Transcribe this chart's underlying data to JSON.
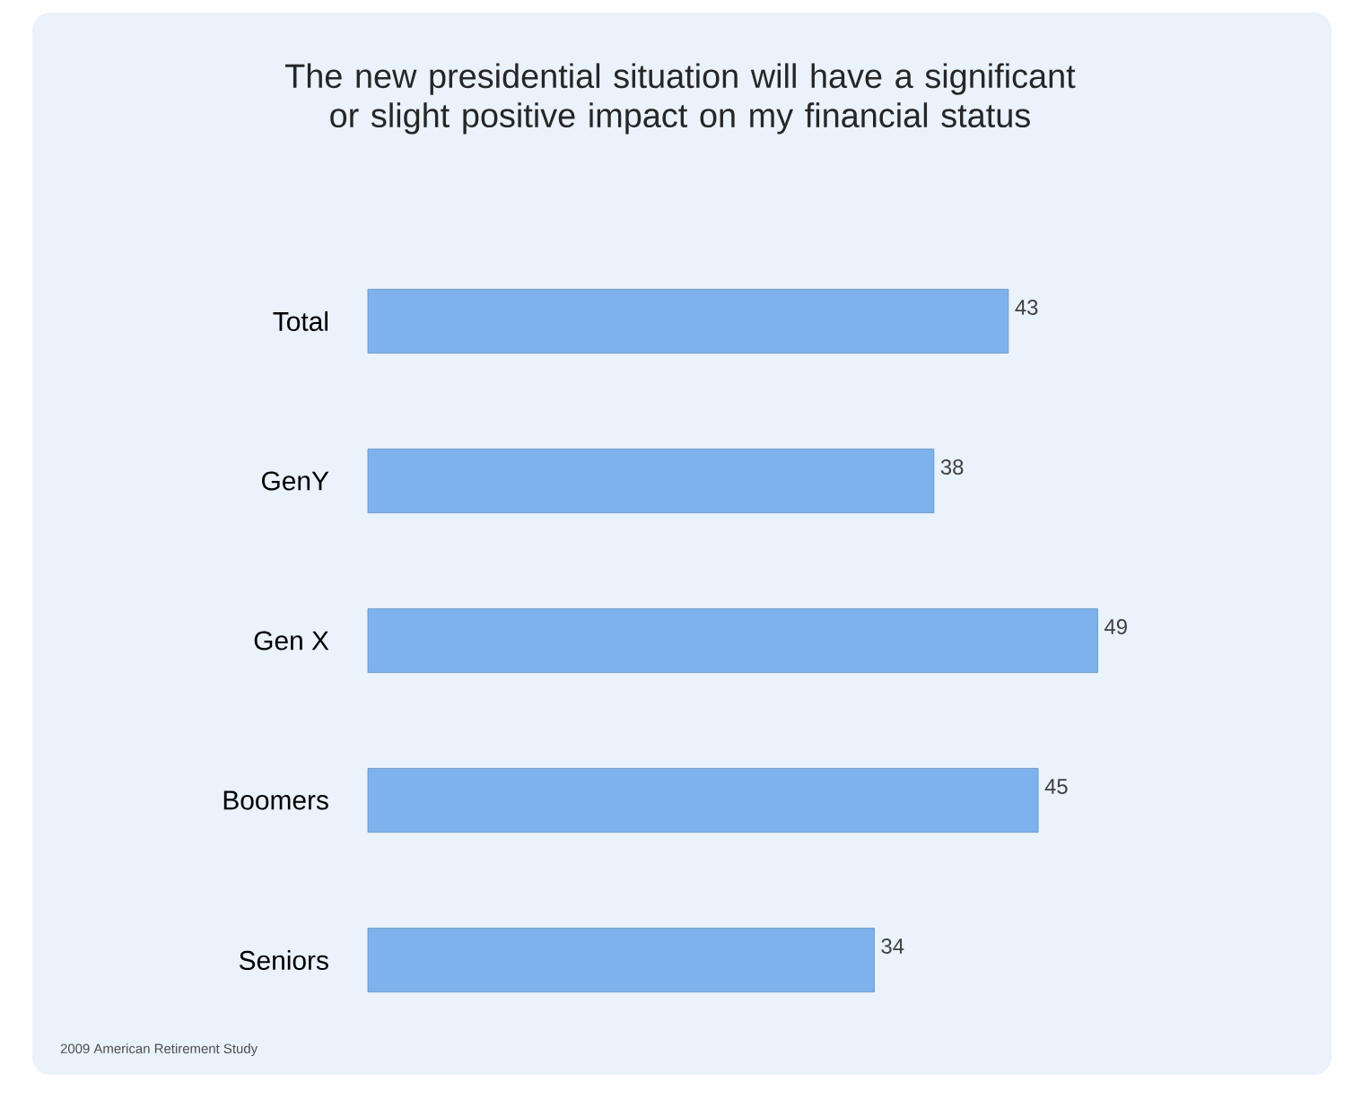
{
  "chart_data": {
    "type": "bar",
    "orientation": "horizontal",
    "title": "The new presidential situation will have a significant or slight positive impact on my financial status",
    "categories": [
      "Total",
      "GenY",
      "Gen X",
      "Boomers",
      "Seniors"
    ],
    "values": [
      43,
      38,
      49,
      45,
      34
    ],
    "color": "#7db2ec",
    "data_labels": true,
    "annotations": [
      "2009 American Retirement Study"
    ]
  }
}
